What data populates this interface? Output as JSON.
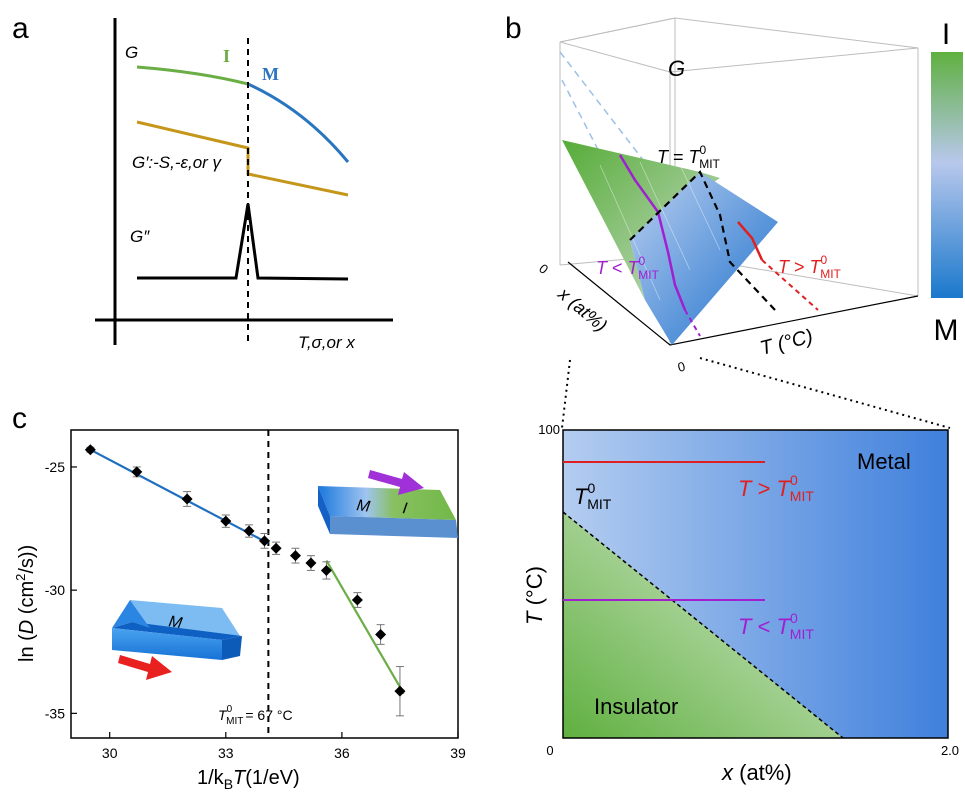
{
  "panels": {
    "a": "a",
    "b": "b",
    "c": "c"
  },
  "panel_a": {
    "curve_g": "G",
    "phase_i": "I",
    "phase_m": "M",
    "curve_gp": "G′:-S,-ε,or γ",
    "curve_gpp": "G″",
    "xaxis": "T,σ,or x"
  },
  "panel_b": {
    "surface_label": "G",
    "eq_T": "T",
    "eq_op": " = ",
    "tmit_T": "T",
    "tmit_sup": "0",
    "tmit_sub": "MIT",
    "lt_T": "T",
    "lt_op": " < ",
    "gt_T": "T",
    "gt_op": " > ",
    "axis_x": "x (at%)",
    "axis_t": "T (°C)",
    "tick_x0": "0",
    "tick_t0": "0",
    "colorbar_top": "I",
    "colorbar_bottom": "M",
    "colors": {
      "insulator": "#5fb040",
      "metal": "#1a78cc",
      "mid": "#b8c8ec"
    }
  },
  "panel_phase": {
    "y_label_T": "T",
    "y_label_unit": " (°C)",
    "x_label_x": "x",
    "x_label_unit": " (at%)",
    "tick_y_top": "100",
    "tick_x_left": "0",
    "tick_x_right": "2.0",
    "metal": "Metal",
    "insulator": "Insulator",
    "tmit_T": "T",
    "tmit_sup": "0",
    "tmit_sub": "MIT",
    "gt_T": "T",
    "gt_op": " > ",
    "lt_T": "T",
    "lt_op": " < "
  },
  "chart_data": {
    "type": "scatter",
    "xlabel": "1/kBT(1/eV)",
    "ylabel": "ln (D (cm²/s))",
    "xlim": [
      29,
      39
    ],
    "ylim": [
      -36,
      -23.5
    ],
    "xticks": [
      30,
      33,
      36,
      39
    ],
    "yticks": [
      -25,
      -30,
      -35
    ],
    "xlabel_pre": "1/k",
    "xlabel_sub": "B",
    "xlabel_T": "T",
    "xlabel_post": "(1/eV)",
    "ylabel_pre": "ln (",
    "ylabel_D": "D",
    "ylabel_mid": " (cm",
    "ylabel_sup": "2",
    "ylabel_post": "/s))",
    "points": [
      {
        "x": 29.5,
        "y": -24.3,
        "err": 0.1
      },
      {
        "x": 30.7,
        "y": -25.2,
        "err": 0.2
      },
      {
        "x": 32.0,
        "y": -26.3,
        "err": 0.3
      },
      {
        "x": 33.0,
        "y": -27.2,
        "err": 0.25
      },
      {
        "x": 33.6,
        "y": -27.6,
        "err": 0.25
      },
      {
        "x": 34.0,
        "y": -28.0,
        "err": 0.3
      },
      {
        "x": 34.3,
        "y": -28.3,
        "err": 0.25
      },
      {
        "x": 34.8,
        "y": -28.6,
        "err": 0.3
      },
      {
        "x": 35.2,
        "y": -28.9,
        "err": 0.3
      },
      {
        "x": 35.6,
        "y": -29.2,
        "err": 0.35
      },
      {
        "x": 36.4,
        "y": -30.4,
        "err": 0.3
      },
      {
        "x": 37.0,
        "y": -31.8,
        "err": 0.4
      },
      {
        "x": 37.5,
        "y": -34.1,
        "err": 1.0
      }
    ],
    "fit_metal": {
      "x": [
        29.5,
        34.1
      ],
      "y": [
        -24.3,
        -28.1
      ],
      "color": "#1e6fbf"
    },
    "fit_insulator": {
      "x": [
        35.6,
        37.6
      ],
      "y": [
        -28.8,
        -34.2
      ],
      "color": "#6aae45"
    },
    "transition_x": 34.1,
    "annotation_T": "T",
    "annotation_sup": "0",
    "annotation_sub": "MIT",
    "annotation_value": "= 67 °C",
    "inset_metal_label": "M",
    "inset_mi_labels": [
      "M",
      "I"
    ]
  }
}
